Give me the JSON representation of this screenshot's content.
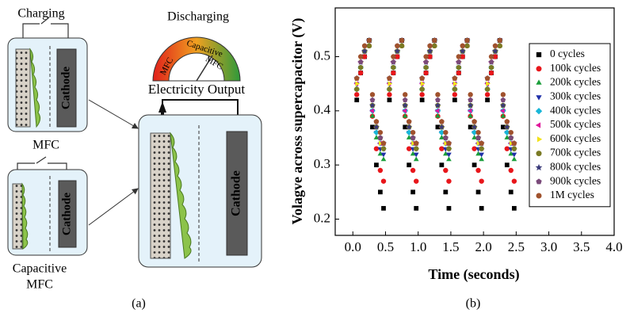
{
  "figure_a": {
    "charging": "Charging",
    "discharging": "Discharging",
    "mfc_label": "MFC",
    "capacitive_mfc_label": [
      "Capacitive",
      "MFC"
    ],
    "cathode_labels": [
      "Cathode",
      "Cathode",
      "Cathode"
    ],
    "output_label": "Electricity Output",
    "gauge_labels": [
      "MFC",
      "Capacitive",
      "MFC"
    ],
    "caption": "(a)"
  },
  "chart_data": {
    "type": "scatter",
    "caption": "(b)",
    "xlabel": "Time (seconds)",
    "ylabel": "Volagve across supercapacitor (V)",
    "xlim": [
      -0.27,
      4.0
    ],
    "ylim": [
      0.17,
      0.59
    ],
    "xticks": [
      {
        "value": 0,
        "label": "0.0"
      },
      0.5,
      {
        "value": 1,
        "label": "1.0"
      },
      1.5,
      {
        "value": 2,
        "label": "2.0"
      },
      2.5,
      {
        "value": 3,
        "label": "3.0"
      },
      3.5,
      {
        "value": 4,
        "label": "4.0"
      }
    ],
    "yticks": [
      0.2,
      0.3,
      0.4,
      0.5
    ],
    "legend": "upper right",
    "x": [
      0.06,
      0.12,
      0.18,
      0.25,
      0.3,
      0.36,
      0.42,
      0.47,
      0.56,
      0.62,
      0.68,
      0.75,
      0.8,
      0.86,
      0.92,
      0.97,
      1.06,
      1.12,
      1.18,
      1.25,
      1.3,
      1.36,
      1.42,
      1.47,
      1.56,
      1.62,
      1.68,
      1.75,
      1.8,
      1.86,
      1.92,
      1.97,
      2.06,
      2.12,
      2.18,
      2.25,
      2.3,
      2.36,
      2.42,
      2.47
    ],
    "series": [
      {
        "name": "0 cycles",
        "color": "#000000",
        "marker": "square",
        "values": [
          0.42,
          0.47,
          0.5,
          0.53,
          0.37,
          0.3,
          0.25,
          0.22,
          0.42,
          0.47,
          0.5,
          0.53,
          0.37,
          0.3,
          0.25,
          0.22,
          0.42,
          0.47,
          0.5,
          0.53,
          0.37,
          0.3,
          0.25,
          0.22,
          0.42,
          0.47,
          0.5,
          0.53,
          0.37,
          0.3,
          0.25,
          0.22,
          0.42,
          0.47,
          0.5,
          0.53,
          0.37,
          0.3,
          0.25,
          0.22
        ]
      },
      {
        "name": "100k cycles",
        "color": "#e8161b",
        "marker": "circle",
        "values": [
          0.43,
          0.47,
          0.5,
          0.52,
          0.39,
          0.33,
          0.29,
          0.27,
          0.43,
          0.47,
          0.5,
          0.52,
          0.39,
          0.33,
          0.29,
          0.27,
          0.43,
          0.47,
          0.5,
          0.52,
          0.39,
          0.33,
          0.29,
          0.27,
          0.43,
          0.47,
          0.5,
          0.52,
          0.39,
          0.33,
          0.29,
          0.27,
          0.43,
          0.47,
          0.5,
          0.52,
          0.39,
          0.33,
          0.29,
          0.27
        ]
      },
      {
        "name": "200k cycles",
        "color": "#1a9e3a",
        "marker": "triangle-up",
        "values": [
          0.44,
          0.48,
          0.51,
          0.52,
          0.39,
          0.35,
          0.32,
          0.31,
          0.44,
          0.48,
          0.51,
          0.52,
          0.39,
          0.35,
          0.32,
          0.31,
          0.44,
          0.48,
          0.51,
          0.52,
          0.39,
          0.35,
          0.32,
          0.31,
          0.44,
          0.48,
          0.51,
          0.52,
          0.39,
          0.35,
          0.32,
          0.31,
          0.44,
          0.48,
          0.51,
          0.52,
          0.39,
          0.35,
          0.32,
          0.31
        ]
      },
      {
        "name": "300k cycles",
        "color": "#1f2fa8",
        "marker": "triangle-down",
        "values": [
          0.45,
          0.48,
          0.51,
          0.53,
          0.4,
          0.36,
          0.33,
          0.32,
          0.45,
          0.48,
          0.51,
          0.53,
          0.4,
          0.36,
          0.33,
          0.32,
          0.45,
          0.48,
          0.51,
          0.53,
          0.4,
          0.36,
          0.33,
          0.32,
          0.45,
          0.48,
          0.51,
          0.53,
          0.4,
          0.36,
          0.33,
          0.32,
          0.45,
          0.48,
          0.51,
          0.53,
          0.4,
          0.36,
          0.33,
          0.32
        ]
      },
      {
        "name": "400k cycles",
        "color": "#19b6d8",
        "marker": "diamond",
        "values": [
          0.44,
          0.48,
          0.51,
          0.53,
          0.4,
          0.36,
          0.34,
          0.33,
          0.44,
          0.48,
          0.51,
          0.53,
          0.4,
          0.36,
          0.34,
          0.33,
          0.44,
          0.48,
          0.51,
          0.53,
          0.4,
          0.36,
          0.34,
          0.33,
          0.44,
          0.48,
          0.51,
          0.53,
          0.4,
          0.36,
          0.34,
          0.33,
          0.44,
          0.48,
          0.51,
          0.53,
          0.4,
          0.36,
          0.34,
          0.33
        ]
      },
      {
        "name": "500k cycles",
        "color": "#e0189b",
        "marker": "triangle-left",
        "values": [
          0.45,
          0.49,
          0.51,
          0.53,
          0.4,
          0.37,
          0.34,
          0.33,
          0.45,
          0.49,
          0.51,
          0.53,
          0.4,
          0.37,
          0.34,
          0.33,
          0.45,
          0.49,
          0.51,
          0.53,
          0.4,
          0.37,
          0.34,
          0.33,
          0.45,
          0.49,
          0.51,
          0.53,
          0.4,
          0.37,
          0.34,
          0.33,
          0.45,
          0.49,
          0.51,
          0.53,
          0.4,
          0.37,
          0.34,
          0.33
        ]
      },
      {
        "name": "600k cycles",
        "color": "#f2e21a",
        "marker": "triangle-right",
        "values": [
          0.45,
          0.49,
          0.51,
          0.52,
          0.41,
          0.37,
          0.34,
          0.33,
          0.45,
          0.49,
          0.51,
          0.52,
          0.41,
          0.37,
          0.34,
          0.33,
          0.45,
          0.49,
          0.51,
          0.52,
          0.41,
          0.37,
          0.34,
          0.33,
          0.45,
          0.49,
          0.51,
          0.52,
          0.41,
          0.37,
          0.34,
          0.33,
          0.45,
          0.49,
          0.51,
          0.52,
          0.41,
          0.37,
          0.34,
          0.33
        ]
      },
      {
        "name": "700k cycles",
        "color": "#7a7a24",
        "marker": "circle",
        "values": [
          0.44,
          0.48,
          0.51,
          0.52,
          0.41,
          0.37,
          0.35,
          0.33,
          0.44,
          0.48,
          0.51,
          0.52,
          0.41,
          0.37,
          0.35,
          0.33,
          0.44,
          0.48,
          0.51,
          0.52,
          0.41,
          0.37,
          0.35,
          0.33,
          0.44,
          0.48,
          0.51,
          0.52,
          0.41,
          0.37,
          0.35,
          0.33,
          0.44,
          0.48,
          0.51,
          0.52,
          0.41,
          0.37,
          0.35,
          0.33
        ]
      },
      {
        "name": "800k cycles",
        "color": "#3b3b7a",
        "marker": "star",
        "values": [
          0.46,
          0.49,
          0.51,
          0.53,
          0.41,
          0.37,
          0.35,
          0.34,
          0.46,
          0.49,
          0.51,
          0.53,
          0.41,
          0.37,
          0.35,
          0.34,
          0.46,
          0.49,
          0.51,
          0.53,
          0.41,
          0.37,
          0.35,
          0.34,
          0.46,
          0.49,
          0.51,
          0.53,
          0.41,
          0.37,
          0.35,
          0.34,
          0.46,
          0.49,
          0.51,
          0.53,
          0.41,
          0.37,
          0.35,
          0.34
        ]
      },
      {
        "name": "900k cycles",
        "color": "#7a4a7a",
        "marker": "pentagon",
        "values": [
          0.46,
          0.49,
          0.52,
          0.53,
          0.42,
          0.38,
          0.35,
          0.34,
          0.46,
          0.49,
          0.52,
          0.53,
          0.42,
          0.38,
          0.35,
          0.34,
          0.46,
          0.49,
          0.52,
          0.53,
          0.42,
          0.38,
          0.35,
          0.34,
          0.46,
          0.49,
          0.52,
          0.53,
          0.42,
          0.38,
          0.35,
          0.34,
          0.46,
          0.49,
          0.52,
          0.53,
          0.42,
          0.38,
          0.35,
          0.34
        ]
      },
      {
        "name": "1M cycles",
        "color": "#a0522d",
        "marker": "circle",
        "values": [
          0.46,
          0.5,
          0.52,
          0.53,
          0.43,
          0.38,
          0.36,
          0.34,
          0.46,
          0.5,
          0.52,
          0.53,
          0.43,
          0.38,
          0.36,
          0.34,
          0.46,
          0.5,
          0.52,
          0.53,
          0.43,
          0.38,
          0.36,
          0.34,
          0.46,
          0.5,
          0.52,
          0.53,
          0.43,
          0.38,
          0.36,
          0.34,
          0.46,
          0.5,
          0.52,
          0.53,
          0.43,
          0.38,
          0.36,
          0.34
        ]
      }
    ]
  }
}
